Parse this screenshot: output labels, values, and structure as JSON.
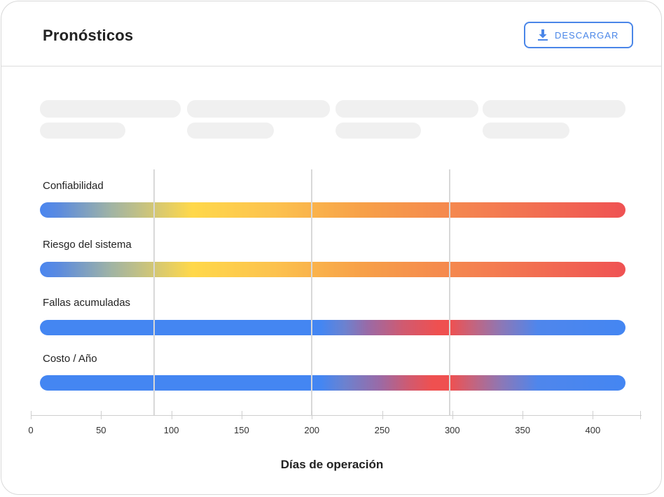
{
  "header": {
    "title": "Pronósticos",
    "download_label": "DESCARGAR",
    "download_icon": "download-icon"
  },
  "colors": {
    "accent": "#4a86e8",
    "blue": "#4486f2",
    "yellow": "#ffd84a",
    "orange": "#f7a048",
    "red": "#ef5253"
  },
  "rows": [
    {
      "label": "Confiabilidad"
    },
    {
      "label": "Riesgo del sistema"
    },
    {
      "label": "Fallas acumuladas"
    },
    {
      "label": "Costo / Año"
    }
  ],
  "axis": {
    "label": "Días de operación",
    "ticks": [
      "0",
      "50",
      "100",
      "150",
      "200",
      "250",
      "300",
      "350",
      "400"
    ]
  }
}
